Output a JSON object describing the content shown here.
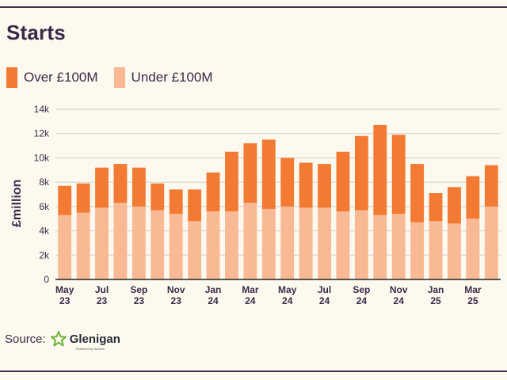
{
  "title": "Starts",
  "legend": [
    {
      "label": "Over £100M",
      "color": "#f37a32"
    },
    {
      "label": "Under £100M",
      "color": "#f9b994"
    }
  ],
  "source": {
    "label": "Source:",
    "logo_text": "Glenigan",
    "logo_sub": "Powered by Hubexo"
  },
  "chart_data": {
    "type": "bar",
    "stacked": true,
    "ylabel": "£million",
    "ylim": [
      0,
      14000
    ],
    "yticks": [
      {
        "value": 0,
        "label": "0"
      },
      {
        "value": 2000,
        "label": "2k"
      },
      {
        "value": 4000,
        "label": "4k"
      },
      {
        "value": 6000,
        "label": "6k"
      },
      {
        "value": 8000,
        "label": "8k"
      },
      {
        "value": 10000,
        "label": "10k"
      },
      {
        "value": 12000,
        "label": "12k"
      },
      {
        "value": 14000,
        "label": "14k"
      }
    ],
    "grid": true,
    "legend_position": "top-left",
    "categories": [
      "May 23",
      "Jun 23",
      "Jul 23",
      "Aug 23",
      "Sep 23",
      "Oct 23",
      "Nov 23",
      "Dec 23",
      "Jan 24",
      "Feb 24",
      "Mar 24",
      "Apr 24",
      "May 24",
      "Jun 24",
      "Jul 24",
      "Aug 24",
      "Sep 24",
      "Oct 24",
      "Nov 24",
      "Dec 24",
      "Jan 25",
      "Feb 25",
      "Mar 25",
      "Apr 25"
    ],
    "xtick_labels": [
      {
        "index": 0,
        "line1": "May",
        "line2": "23"
      },
      {
        "index": 2,
        "line1": "Jul",
        "line2": "23"
      },
      {
        "index": 4,
        "line1": "Sep",
        "line2": "23"
      },
      {
        "index": 6,
        "line1": "Nov",
        "line2": "23"
      },
      {
        "index": 8,
        "line1": "Jan",
        "line2": "24"
      },
      {
        "index": 10,
        "line1": "Mar",
        "line2": "24"
      },
      {
        "index": 12,
        "line1": "May",
        "line2": "24"
      },
      {
        "index": 14,
        "line1": "Jul",
        "line2": "24"
      },
      {
        "index": 16,
        "line1": "Sep",
        "line2": "24"
      },
      {
        "index": 18,
        "line1": "Nov",
        "line2": "24"
      },
      {
        "index": 20,
        "line1": "Jan",
        "line2": "25"
      },
      {
        "index": 22,
        "line1": "Mar",
        "line2": "25"
      }
    ],
    "series": [
      {
        "name": "Under £100M",
        "color": "#f9b994",
        "values": [
          5300,
          5500,
          5900,
          6300,
          6000,
          5700,
          5400,
          4800,
          5600,
          5600,
          6300,
          5800,
          6000,
          5900,
          5900,
          5600,
          5700,
          5300,
          5400,
          4700,
          4800,
          4600,
          5000,
          6000
        ]
      },
      {
        "name": "Over £100M",
        "color": "#f37a32",
        "values": [
          2400,
          2400,
          3300,
          3200,
          3200,
          2200,
          2000,
          2600,
          3200,
          4900,
          4900,
          5700,
          4000,
          3700,
          3600,
          4900,
          6100,
          7400,
          6500,
          4800,
          2300,
          3000,
          3500,
          3400
        ]
      }
    ]
  }
}
